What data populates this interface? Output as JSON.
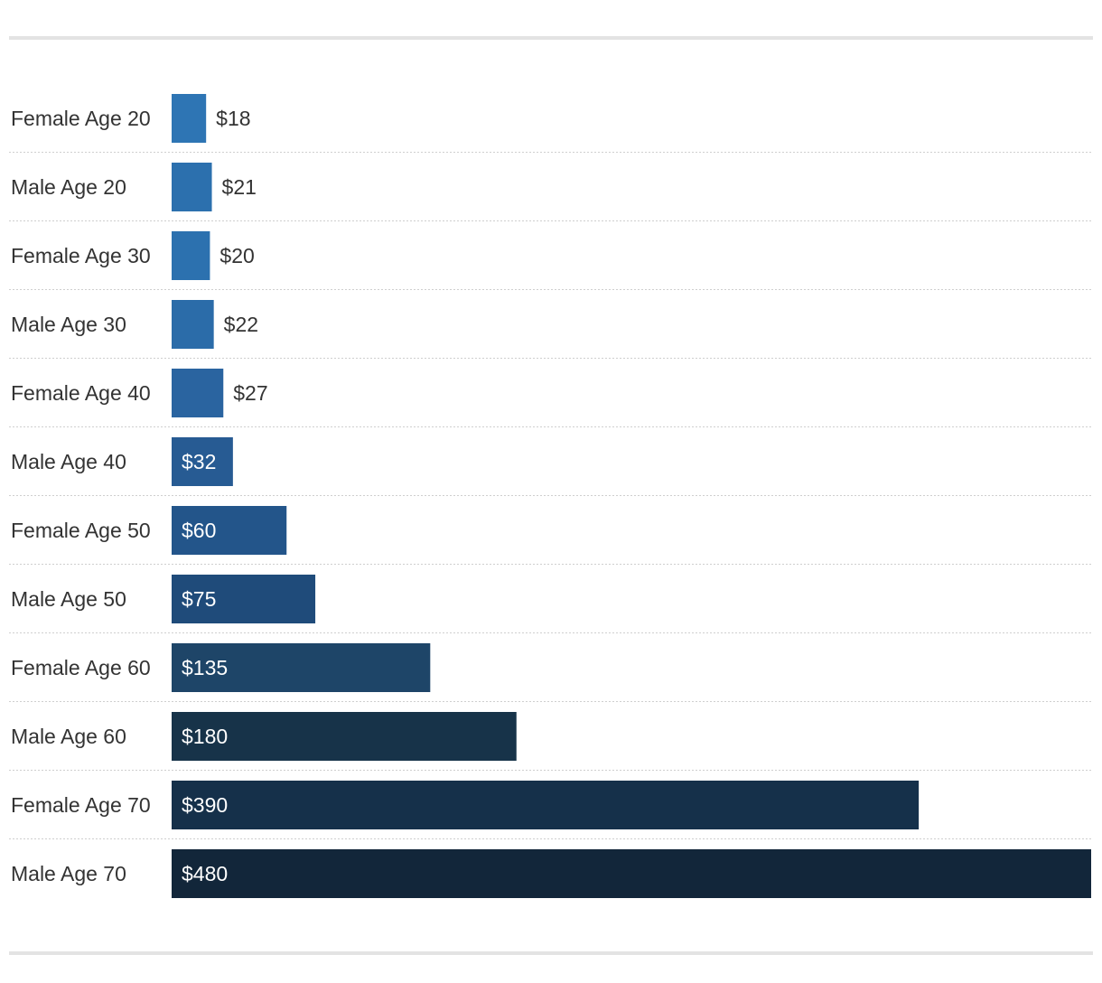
{
  "chart_data": {
    "type": "bar",
    "orientation": "horizontal",
    "title": "",
    "xlabel": "",
    "ylabel": "",
    "xlim": [
      0,
      480
    ],
    "grid": false,
    "legend": "none",
    "categories": [
      "Female Age 20",
      "Male Age 20",
      "Female Age 30",
      "Male Age 30",
      "Female Age 40",
      "Male Age 40",
      "Female Age 50",
      "Male Age 50",
      "Female Age 60",
      "Male Age 60",
      "Female Age 70",
      "Male Age 70"
    ],
    "values": [
      18,
      21,
      20,
      22,
      27,
      32,
      60,
      75,
      135,
      180,
      390,
      480
    ],
    "value_labels": [
      "$18",
      "$21",
      "$20",
      "$22",
      "$27",
      "$32",
      "$60",
      "$75",
      "$135",
      "$180",
      "$390",
      "$480"
    ],
    "colors": [
      "#2e75b4",
      "#2c70ae",
      "#2c71af",
      "#2b6ca9",
      "#2a64a0",
      "#275b93",
      "#23558a",
      "#1f4b7a",
      "#1e4568",
      "#173349",
      "#15304a",
      "#12263a"
    ],
    "separator_color": "#cfcfcf",
    "label_color_outside": "#333333",
    "label_color_inside": "#ffffff",
    "category_label_color": "#333333"
  }
}
